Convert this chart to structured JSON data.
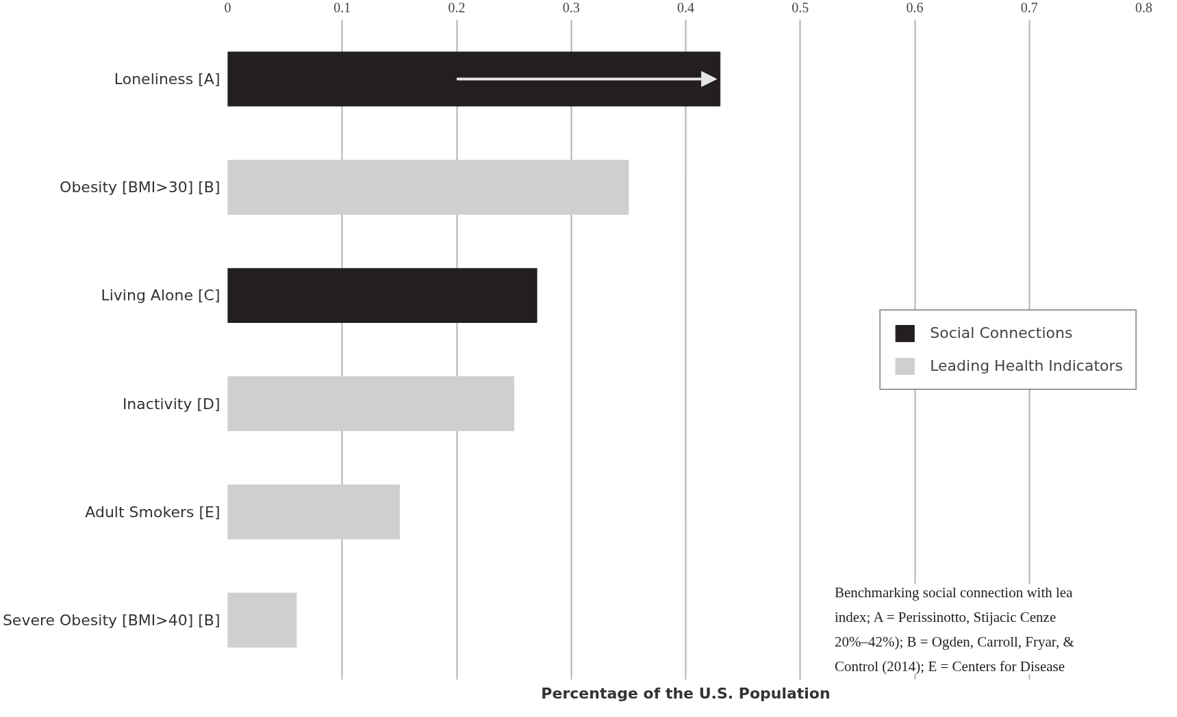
{
  "chart_data": {
    "type": "bar",
    "orientation": "horizontal",
    "xlabel": "Percentage of the U.S. Population",
    "categories": [
      "Loneliness [A]",
      "Obesity [BMI>30] [B]",
      "Living Alone [C]",
      "Inactivity [D]",
      "Adult Smokers [E]",
      "Severe Obesity [BMI>40] [B]"
    ],
    "series": [
      {
        "name": "Social Connections",
        "color": "#231f20",
        "values": [
          0.43,
          null,
          0.27,
          null,
          null,
          null
        ]
      },
      {
        "name": "Leading Health Indicators",
        "color": "#cdcfd1",
        "values": [
          null,
          0.35,
          null,
          0.25,
          0.15,
          0.06
        ]
      }
    ],
    "xlim": [
      0,
      0.8
    ],
    "xticks": [
      0,
      0.1,
      0.2,
      0.3,
      0.4,
      0.5,
      0.6,
      0.7,
      0.8
    ],
    "grid": "x",
    "legend": "right",
    "annotations": [
      "Benchmarking social connection with lea\nindex; A = Perissinotto, Stijacic Cenze\n20%–42%); B = Ogden, Carroll, Fryar, &\nControl (2014); E = Centers for Disease"
    ]
  }
}
